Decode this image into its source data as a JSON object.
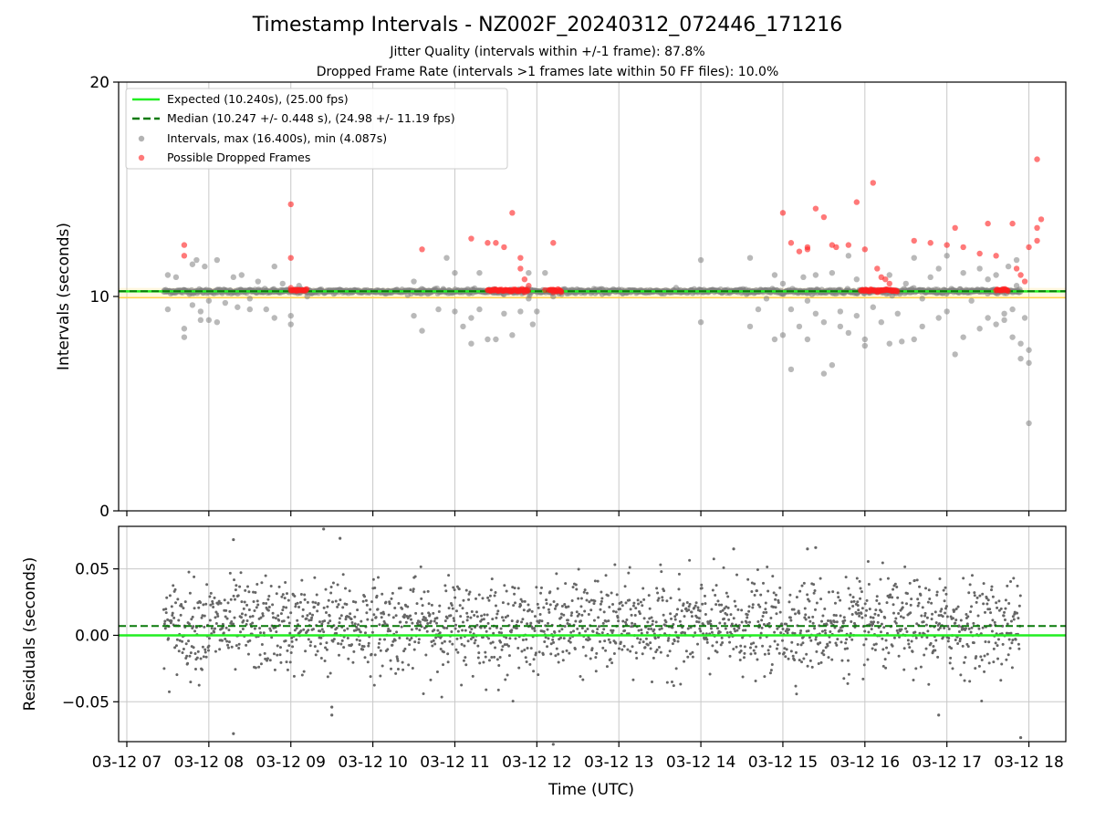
{
  "title": "Timestamp Intervals - NZ002F_20240312_072446_171216",
  "subtitle_1": "Jitter Quality (intervals within +/-1 frame): 87.8%",
  "subtitle_2": "Dropped Frame Rate (intervals >1 frames late within 50 FF files): 10.0%",
  "colors": {
    "expected": "#22ee22",
    "median": "#0a7a0a",
    "intervals": "#808080",
    "dropped": "#ff2020",
    "band": "#ffd24a",
    "grid": "#c8c8c8",
    "residual_points": "#666666"
  },
  "chart_data": [
    {
      "type": "scatter",
      "panel": "top",
      "ylabel": "Intervals (seconds)",
      "ylim": [
        0,
        20
      ],
      "y_ticks": [
        "0",
        "10",
        "20"
      ],
      "x_hours": [
        7,
        8,
        9,
        10,
        11,
        12,
        13,
        14,
        15,
        16,
        17,
        18
      ],
      "x_tick_labels": [
        "03-12 07",
        "03-12 08",
        "03-12 09",
        "03-12 10",
        "03-12 11",
        "03-12 12",
        "03-12 13",
        "03-12 14",
        "03-12 15",
        "03-12 16",
        "03-12 17",
        "03-12 18"
      ],
      "xlim": [
        6.9,
        18.45
      ],
      "grid": "vertical",
      "legend_position": "top-left",
      "legend": [
        {
          "label": "Expected (10.240s), (25.00 fps)",
          "style": "solid-line"
        },
        {
          "label": "Median (10.247 +/- 0.448 s), (24.98 +/- 11.19 fps)",
          "style": "dashed-line"
        },
        {
          "label": "Intervals, max (16.400s), min (4.087s)",
          "style": "gray-dot"
        },
        {
          "label": "Possible Dropped Frames",
          "style": "red-dot"
        }
      ],
      "expected_interval": 10.24,
      "median_interval": 10.247,
      "max_interval": 16.4,
      "min_interval": 4.087,
      "baseline_spans": [
        [
          7.45,
          17.9
        ]
      ],
      "interval_outliers": [
        [
          7.5,
          11.0
        ],
        [
          7.5,
          9.4
        ],
        [
          7.6,
          10.9
        ],
        [
          7.7,
          8.1
        ],
        [
          7.7,
          8.5
        ],
        [
          7.8,
          11.5
        ],
        [
          7.8,
          9.6
        ],
        [
          7.85,
          11.7
        ],
        [
          7.9,
          9.3
        ],
        [
          7.9,
          8.9
        ],
        [
          7.95,
          11.4
        ],
        [
          8.0,
          9.8
        ],
        [
          8.0,
          8.9
        ],
        [
          8.1,
          11.7
        ],
        [
          8.1,
          8.8
        ],
        [
          8.2,
          9.7
        ],
        [
          8.3,
          10.9
        ],
        [
          8.35,
          9.5
        ],
        [
          8.4,
          11.0
        ],
        [
          8.5,
          9.9
        ],
        [
          8.5,
          9.4
        ],
        [
          8.6,
          10.7
        ],
        [
          8.7,
          9.4
        ],
        [
          8.8,
          11.4
        ],
        [
          8.8,
          9.0
        ],
        [
          8.9,
          10.6
        ],
        [
          9.0,
          9.1
        ],
        [
          9.0,
          8.7
        ],
        [
          9.1,
          10.5
        ],
        [
          9.2,
          10.0
        ],
        [
          10.5,
          10.7
        ],
        [
          10.5,
          9.1
        ],
        [
          10.6,
          8.4
        ],
        [
          10.8,
          9.4
        ],
        [
          10.9,
          11.8
        ],
        [
          11.0,
          11.1
        ],
        [
          11.0,
          9.3
        ],
        [
          11.1,
          8.6
        ],
        [
          11.2,
          9.0
        ],
        [
          11.2,
          7.8
        ],
        [
          11.3,
          9.4
        ],
        [
          11.3,
          11.1
        ],
        [
          11.4,
          8.0
        ],
        [
          11.5,
          8.0
        ],
        [
          11.6,
          9.2
        ],
        [
          11.7,
          8.2
        ],
        [
          11.8,
          9.3
        ],
        [
          11.9,
          11.1
        ],
        [
          11.9,
          9.9
        ],
        [
          11.95,
          8.7
        ],
        [
          12.0,
          9.3
        ],
        [
          12.1,
          11.1
        ],
        [
          12.2,
          10.0
        ],
        [
          14.0,
          11.7
        ],
        [
          14.0,
          8.8
        ],
        [
          14.6,
          11.8
        ],
        [
          14.6,
          8.6
        ],
        [
          14.7,
          9.4
        ],
        [
          14.8,
          9.9
        ],
        [
          14.9,
          8.0
        ],
        [
          14.9,
          11.0
        ],
        [
          15.0,
          8.2
        ],
        [
          15.0,
          10.6
        ],
        [
          15.1,
          9.4
        ],
        [
          15.1,
          6.6
        ],
        [
          15.2,
          8.6
        ],
        [
          15.25,
          10.9
        ],
        [
          15.3,
          9.8
        ],
        [
          15.3,
          8.0
        ],
        [
          15.4,
          9.2
        ],
        [
          15.4,
          11.0
        ],
        [
          15.5,
          8.8
        ],
        [
          15.5,
          6.4
        ],
        [
          15.6,
          11.1
        ],
        [
          15.6,
          6.8
        ],
        [
          15.7,
          9.3
        ],
        [
          15.7,
          8.6
        ],
        [
          15.8,
          11.9
        ],
        [
          15.8,
          8.3
        ],
        [
          15.9,
          9.1
        ],
        [
          15.9,
          10.8
        ],
        [
          16.0,
          8.0
        ],
        [
          16.0,
          7.7
        ],
        [
          16.1,
          9.5
        ],
        [
          16.2,
          8.8
        ],
        [
          16.3,
          11.0
        ],
        [
          16.4,
          9.2
        ],
        [
          16.45,
          7.9
        ],
        [
          16.5,
          10.6
        ],
        [
          16.6,
          11.8
        ],
        [
          16.7,
          9.9
        ],
        [
          16.7,
          8.6
        ],
        [
          16.8,
          10.9
        ],
        [
          16.3,
          7.8
        ],
        [
          16.6,
          8.0
        ],
        [
          16.9,
          11.3
        ],
        [
          16.9,
          9.0
        ],
        [
          17.0,
          11.9
        ],
        [
          17.0,
          9.3
        ],
        [
          17.1,
          7.3
        ],
        [
          17.2,
          8.1
        ],
        [
          17.2,
          11.1
        ],
        [
          17.3,
          9.8
        ],
        [
          17.4,
          11.3
        ],
        [
          17.4,
          8.5
        ],
        [
          17.5,
          10.8
        ],
        [
          17.5,
          9.0
        ],
        [
          17.6,
          8.7
        ],
        [
          17.6,
          11.0
        ],
        [
          17.7,
          9.2
        ],
        [
          17.7,
          8.9
        ],
        [
          17.8,
          9.4
        ],
        [
          17.8,
          8.1
        ],
        [
          17.85,
          11.7
        ],
        [
          17.9,
          7.8
        ],
        [
          17.9,
          7.1
        ],
        [
          18.0,
          7.5
        ],
        [
          18.0,
          6.9
        ],
        [
          18.0,
          4.087
        ],
        [
          17.95,
          9.0
        ],
        [
          17.85,
          10.5
        ],
        [
          17.75,
          11.4
        ]
      ],
      "dropped_frames": [
        [
          7.7,
          12.4
        ],
        [
          7.7,
          11.9
        ],
        [
          9.0,
          14.3
        ],
        [
          9.0,
          11.8
        ],
        [
          9.0,
          10.4
        ],
        [
          9.1,
          10.3
        ],
        [
          10.6,
          12.2
        ],
        [
          11.2,
          12.7
        ],
        [
          11.4,
          12.5
        ],
        [
          11.5,
          12.5
        ],
        [
          11.6,
          12.3
        ],
        [
          11.7,
          13.9
        ],
        [
          11.8,
          11.8
        ],
        [
          11.8,
          11.3
        ],
        [
          11.85,
          10.8
        ],
        [
          11.9,
          10.5
        ],
        [
          11.85,
          10.2
        ],
        [
          12.2,
          12.5
        ],
        [
          12.1,
          10.3
        ],
        [
          12.2,
          10.2
        ],
        [
          12.3,
          10.2
        ],
        [
          15.0,
          13.9
        ],
        [
          15.1,
          12.5
        ],
        [
          15.2,
          12.1
        ],
        [
          15.3,
          12.3
        ],
        [
          15.3,
          12.2
        ],
        [
          15.4,
          14.1
        ],
        [
          15.5,
          13.7
        ],
        [
          15.6,
          12.4
        ],
        [
          15.65,
          12.3
        ],
        [
          15.8,
          12.4
        ],
        [
          15.9,
          14.4
        ],
        [
          16.0,
          12.2
        ],
        [
          16.1,
          15.3
        ],
        [
          16.15,
          11.3
        ],
        [
          16.2,
          10.9
        ],
        [
          16.25,
          10.8
        ],
        [
          16.3,
          10.6
        ],
        [
          16.6,
          12.6
        ],
        [
          16.8,
          12.5
        ],
        [
          17.0,
          12.4
        ],
        [
          17.1,
          13.2
        ],
        [
          17.2,
          12.3
        ],
        [
          17.4,
          12.0
        ],
        [
          17.5,
          13.4
        ],
        [
          17.6,
          11.9
        ],
        [
          17.8,
          13.4
        ],
        [
          17.85,
          11.3
        ],
        [
          17.9,
          11.0
        ],
        [
          17.95,
          10.7
        ],
        [
          18.0,
          12.3
        ],
        [
          18.1,
          12.6
        ],
        [
          18.1,
          13.2
        ],
        [
          18.15,
          13.6
        ],
        [
          18.1,
          16.4
        ]
      ],
      "dropped_clusters": [
        [
          9.0,
          9.2
        ],
        [
          11.4,
          11.9
        ],
        [
          12.15,
          12.3
        ],
        [
          15.95,
          16.4
        ],
        [
          17.6,
          17.75
        ]
      ]
    },
    {
      "type": "scatter",
      "panel": "bottom",
      "xlabel": "Time (UTC)",
      "ylabel": "Residuals (seconds)",
      "ylim": [
        -0.08,
        0.082
      ],
      "y_ticks": [
        -0.05,
        0.0,
        0.05
      ],
      "y_tick_labels": [
        "−0.05",
        "0.00",
        "0.05"
      ],
      "grid": "both",
      "expected_residual": 0.0,
      "median_residual": 0.007,
      "residual_std": 0.017,
      "residual_extremes": [
        [
          8.3,
          0.072
        ],
        [
          9.4,
          0.08
        ],
        [
          9.6,
          0.073
        ],
        [
          8.3,
          -0.074
        ],
        [
          9.5,
          -0.054
        ],
        [
          9.5,
          -0.06
        ],
        [
          12.2,
          -0.082
        ],
        [
          17.9,
          -0.077
        ],
        [
          14.4,
          0.065
        ],
        [
          15.4,
          0.066
        ],
        [
          15.3,
          0.065
        ],
        [
          16.9,
          -0.06
        ]
      ]
    }
  ]
}
